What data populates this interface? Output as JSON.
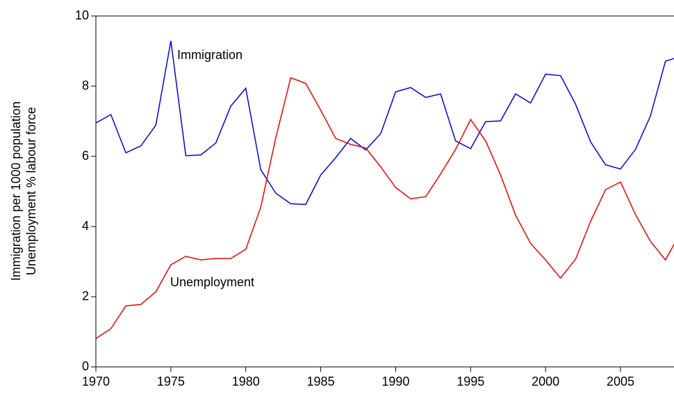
{
  "chart_data": {
    "type": "line",
    "y_label": [
      "Immigration per 1000 population",
      "Unemployment  % labour force"
    ],
    "annotations": [
      "Immigration",
      "Unemployment"
    ],
    "x": [
      1970,
      1971,
      1972,
      1973,
      1974,
      1975,
      1976,
      1977,
      1978,
      1979,
      1980,
      1981,
      1982,
      1983,
      1984,
      1985,
      1986,
      1987,
      1988,
      1989,
      1990,
      1991,
      1992,
      1993,
      1994,
      1995,
      1996,
      1997,
      1998,
      1999,
      2000,
      2001,
      2002,
      2003,
      2004,
      2005,
      2006,
      2007,
      2008,
      2009
    ],
    "series": [
      {
        "name": "Immigration",
        "color": "#0000dd",
        "values": [
          6.95,
          7.19,
          6.1,
          6.3,
          6.89,
          9.29,
          6.02,
          6.04,
          6.38,
          7.43,
          7.94,
          5.62,
          4.95,
          4.65,
          4.63,
          5.47,
          5.96,
          6.51,
          6.18,
          6.65,
          7.84,
          7.96,
          7.68,
          7.78,
          6.44,
          6.22,
          6.99,
          7.01,
          7.78,
          7.52,
          8.34,
          8.3,
          7.49,
          6.42,
          5.76,
          5.64,
          6.2,
          7.15,
          8.71,
          8.85
        ]
      },
      {
        "name": "Unemployment",
        "color": "#ee0000",
        "values": [
          0.81,
          1.09,
          1.74,
          1.78,
          2.14,
          2.91,
          3.15,
          3.05,
          3.09,
          3.09,
          3.35,
          4.55,
          6.53,
          8.24,
          8.08,
          7.31,
          6.51,
          6.34,
          6.24,
          5.7,
          5.11,
          4.79,
          4.85,
          5.5,
          6.2,
          7.05,
          6.44,
          5.47,
          4.32,
          3.52,
          3.05,
          2.53,
          3.07,
          4.14,
          5.05,
          5.27,
          4.34,
          3.58,
          3.05,
          3.82
        ]
      }
    ],
    "xlim": [
      1970,
      2008.57
    ],
    "xticks": [
      1970,
      1975,
      1980,
      1985,
      1990,
      1995,
      2000,
      2005
    ],
    "ylim": [
      0,
      10
    ],
    "yticks": [
      0,
      2,
      4,
      6,
      8,
      10
    ]
  }
}
